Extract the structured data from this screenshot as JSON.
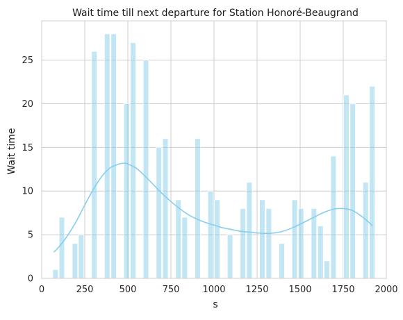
{
  "chart_data": {
    "type": "bar",
    "title": "Wait time till next departure for Station Honoré-Beaugrand",
    "xlabel": "s",
    "ylabel": "Wait time",
    "xlim": [
      0,
      2000
    ],
    "ylim": [
      0,
      29.5
    ],
    "xticks": [
      0,
      250,
      500,
      750,
      1000,
      1250,
      1500,
      1750,
      2000
    ],
    "yticks": [
      0,
      5,
      10,
      15,
      20,
      25
    ],
    "grid": true,
    "bar_color": "#87ceeb",
    "kde_color": "#87ceeb",
    "bin_width": 37.5,
    "bins": [
      {
        "x": 80,
        "value": 1
      },
      {
        "x": 117,
        "value": 7
      },
      {
        "x": 193,
        "value": 4
      },
      {
        "x": 229,
        "value": 5
      },
      {
        "x": 305,
        "value": 26
      },
      {
        "x": 380,
        "value": 28
      },
      {
        "x": 418,
        "value": 28
      },
      {
        "x": 493,
        "value": 20
      },
      {
        "x": 530,
        "value": 27
      },
      {
        "x": 605,
        "value": 25
      },
      {
        "x": 680,
        "value": 15
      },
      {
        "x": 718,
        "value": 16
      },
      {
        "x": 793,
        "value": 9
      },
      {
        "x": 830,
        "value": 7
      },
      {
        "x": 905,
        "value": 16
      },
      {
        "x": 980,
        "value": 10
      },
      {
        "x": 1018,
        "value": 9
      },
      {
        "x": 1093,
        "value": 5
      },
      {
        "x": 1168,
        "value": 8
      },
      {
        "x": 1205,
        "value": 11
      },
      {
        "x": 1280,
        "value": 9
      },
      {
        "x": 1318,
        "value": 8
      },
      {
        "x": 1393,
        "value": 4
      },
      {
        "x": 1468,
        "value": 9
      },
      {
        "x": 1505,
        "value": 8
      },
      {
        "x": 1580,
        "value": 8
      },
      {
        "x": 1618,
        "value": 6
      },
      {
        "x": 1655,
        "value": 2
      },
      {
        "x": 1693,
        "value": 14
      },
      {
        "x": 1768,
        "value": 21
      },
      {
        "x": 1805,
        "value": 20
      },
      {
        "x": 1880,
        "value": 11
      },
      {
        "x": 1918,
        "value": 22
      }
    ],
    "kde": {
      "x": [
        70,
        100,
        150,
        200,
        250,
        300,
        350,
        400,
        450,
        480,
        500,
        550,
        600,
        650,
        700,
        750,
        800,
        850,
        900,
        950,
        1000,
        1050,
        1100,
        1150,
        1200,
        1250,
        1300,
        1350,
        1400,
        1450,
        1500,
        1550,
        1600,
        1650,
        1700,
        1750,
        1800,
        1850,
        1900,
        1920
      ],
      "y": [
        3.0,
        3.6,
        4.9,
        6.5,
        8.4,
        10.2,
        11.7,
        12.7,
        13.1,
        13.2,
        13.1,
        12.6,
        11.7,
        10.7,
        9.7,
        8.8,
        8.0,
        7.3,
        6.8,
        6.4,
        6.1,
        5.8,
        5.6,
        5.4,
        5.3,
        5.2,
        5.15,
        5.2,
        5.4,
        5.75,
        6.2,
        6.7,
        7.2,
        7.65,
        7.95,
        8.0,
        7.8,
        7.2,
        6.4,
        6.0
      ]
    }
  }
}
